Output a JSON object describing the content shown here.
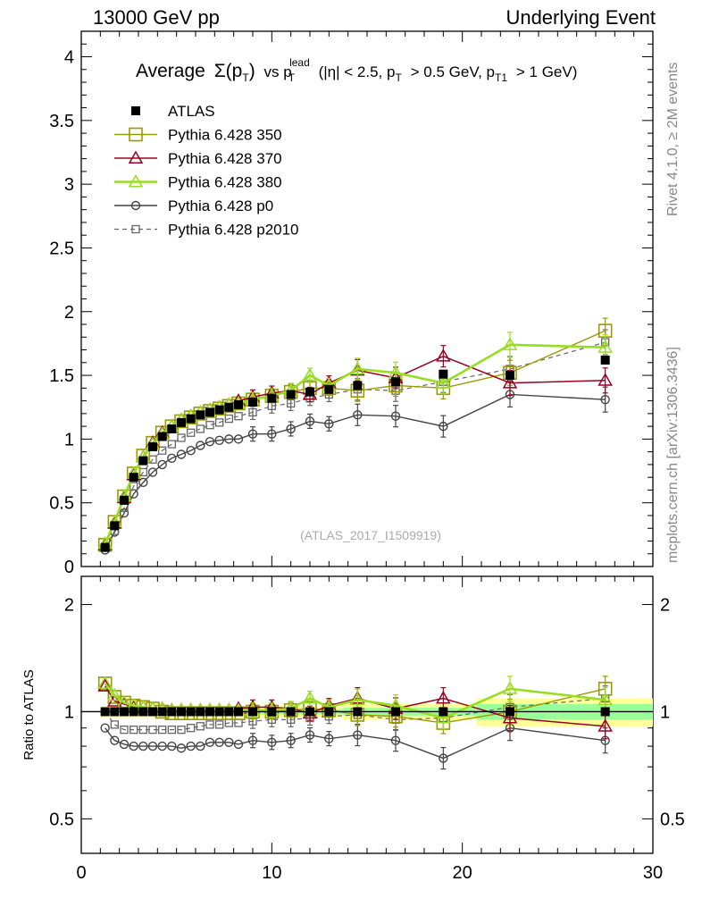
{
  "header": {
    "left": "13000 GeV pp",
    "right": "Underlying Event"
  },
  "side_labels": {
    "top": "Rivet 4.1.0, ≥ 2M events",
    "bottom": "mcplots.cern.ch [arXiv:1306.3436]"
  },
  "plot_title": {
    "average": "Average",
    "sigma": "Σ(p",
    "sub_T": "T",
    "close": ")",
    "vs": "vs p",
    "sup_lead": "lead",
    "cuts_a": "(|η| < 2.5, p",
    "cuts_b": "> 0.5 GeV, p",
    "sub_T1": "T1",
    "cuts_c": "> 1 GeV)"
  },
  "analysis_id": "(ATLAS_2017_I1509919)",
  "colors": {
    "atlas": "#000000",
    "p350": "#999900",
    "p370": "#990022",
    "p380": "#99dd22",
    "p0": "#444444",
    "p2010": "#666666",
    "band_outer": "#ffff99",
    "band_inner": "#99ff99"
  },
  "chart_data": {
    "type": "scatter",
    "xlim": [
      0,
      30
    ],
    "main": {
      "ylim": [
        0,
        4.2
      ],
      "yticks": [
        "0",
        "0.5",
        "1",
        "1.5",
        "2",
        "2.5",
        "3",
        "3.5",
        "4"
      ],
      "xlabel": "",
      "ylabel": ""
    },
    "ratio": {
      "ylim": [
        0.4,
        2.4
      ],
      "yticks": [
        "0.5",
        "1",
        "2"
      ],
      "ylabel": "Ratio to ATLAS"
    },
    "xticks": [
      "0",
      "10",
      "20",
      "30"
    ],
    "x": [
      1.25,
      1.75,
      2.25,
      2.75,
      3.25,
      3.75,
      4.25,
      4.75,
      5.25,
      5.75,
      6.25,
      6.75,
      7.25,
      7.75,
      8.25,
      9,
      10,
      11,
      12,
      13,
      14.5,
      16.5,
      19,
      22.5,
      27.5
    ],
    "series": [
      {
        "name": "ATLAS",
        "key": "atlas",
        "values": [
          0.15,
          0.32,
          0.52,
          0.7,
          0.83,
          0.94,
          1.02,
          1.08,
          1.13,
          1.16,
          1.19,
          1.21,
          1.23,
          1.25,
          1.27,
          1.29,
          1.32,
          1.35,
          1.37,
          1.39,
          1.42,
          1.45,
          1.51,
          1.5,
          1.62
        ],
        "ratio": [
          1,
          1,
          1,
          1,
          1,
          1,
          1,
          1,
          1,
          1,
          1,
          1,
          1,
          1,
          1,
          1,
          1,
          1,
          1,
          1,
          1,
          1,
          1,
          1,
          1
        ]
      },
      {
        "name": "Pythia 6.428 350",
        "key": "p350",
        "values": [
          0.17,
          0.35,
          0.55,
          0.73,
          0.87,
          0.97,
          1.05,
          1.1,
          1.14,
          1.17,
          1.2,
          1.22,
          1.24,
          1.26,
          1.28,
          1.31,
          1.34,
          1.37,
          1.4,
          1.4,
          1.38,
          1.42,
          1.4,
          1.52,
          1.85
        ],
        "ratio": [
          1.2,
          1.1,
          1.06,
          1.04,
          1.03,
          1.02,
          1.0,
          0.99,
          0.99,
          0.99,
          0.99,
          0.99,
          0.99,
          0.99,
          0.99,
          1.0,
          1.0,
          1.01,
          1.02,
          1.01,
          0.98,
          0.97,
          0.93,
          1.0,
          1.16
        ]
      },
      {
        "name": "Pythia 6.428 370",
        "key": "p370",
        "values": [
          0.17,
          0.34,
          0.54,
          0.72,
          0.86,
          0.97,
          1.05,
          1.1,
          1.15,
          1.18,
          1.21,
          1.23,
          1.25,
          1.27,
          1.3,
          1.33,
          1.36,
          1.38,
          1.35,
          1.44,
          1.54,
          1.48,
          1.65,
          1.44,
          1.46
        ],
        "ratio": [
          1.18,
          1.07,
          1.05,
          1.03,
          1.03,
          1.02,
          1.02,
          1.01,
          1.01,
          1.01,
          1.01,
          1.01,
          1.01,
          1.01,
          1.02,
          1.03,
          1.03,
          1.02,
          0.99,
          1.04,
          1.09,
          1.02,
          1.09,
          0.96,
          0.91
        ]
      },
      {
        "name": "Pythia 6.428 380",
        "key": "p380",
        "values": [
          0.18,
          0.35,
          0.55,
          0.73,
          0.86,
          0.96,
          1.04,
          1.1,
          1.15,
          1.18,
          1.21,
          1.23,
          1.25,
          1.27,
          1.28,
          1.31,
          1.34,
          1.38,
          1.5,
          1.42,
          1.55,
          1.52,
          1.44,
          1.74,
          1.72
        ],
        "ratio": [
          1.2,
          1.11,
          1.06,
          1.04,
          1.03,
          1.02,
          1.02,
          1.01,
          1.01,
          1.01,
          1.01,
          1.01,
          1.01,
          1.01,
          1.01,
          1.01,
          1.01,
          1.02,
          1.09,
          1.03,
          1.08,
          1.04,
          0.96,
          1.16,
          1.08
        ]
      },
      {
        "name": "Pythia 6.428 p0",
        "key": "p0",
        "values": [
          0.13,
          0.27,
          0.42,
          0.57,
          0.66,
          0.74,
          0.8,
          0.85,
          0.88,
          0.91,
          0.95,
          0.98,
          0.99,
          1.0,
          1.0,
          1.04,
          1.04,
          1.08,
          1.14,
          1.12,
          1.19,
          1.18,
          1.1,
          1.35,
          1.31
        ],
        "ratio": [
          0.9,
          0.83,
          0.81,
          0.8,
          0.8,
          0.8,
          0.8,
          0.8,
          0.79,
          0.8,
          0.8,
          0.82,
          0.82,
          0.82,
          0.81,
          0.83,
          0.82,
          0.83,
          0.86,
          0.84,
          0.86,
          0.83,
          0.74,
          0.9,
          0.83
        ]
      },
      {
        "name": "Pythia 6.428 p2010",
        "key": "p2010",
        "values": [
          0.15,
          0.28,
          0.46,
          0.63,
          0.74,
          0.84,
          0.91,
          0.96,
          1.01,
          1.05,
          1.08,
          1.11,
          1.13,
          1.16,
          1.18,
          1.21,
          1.26,
          1.28,
          1.32,
          1.35,
          1.39,
          1.38,
          1.45,
          1.55,
          1.76
        ],
        "ratio": [
          1.0,
          0.92,
          0.89,
          0.89,
          0.89,
          0.89,
          0.89,
          0.89,
          0.89,
          0.9,
          0.91,
          0.92,
          0.92,
          0.93,
          0.93,
          0.94,
          0.95,
          0.95,
          0.96,
          0.97,
          0.98,
          0.95,
          0.96,
          1.03,
          1.09
        ]
      }
    ]
  }
}
